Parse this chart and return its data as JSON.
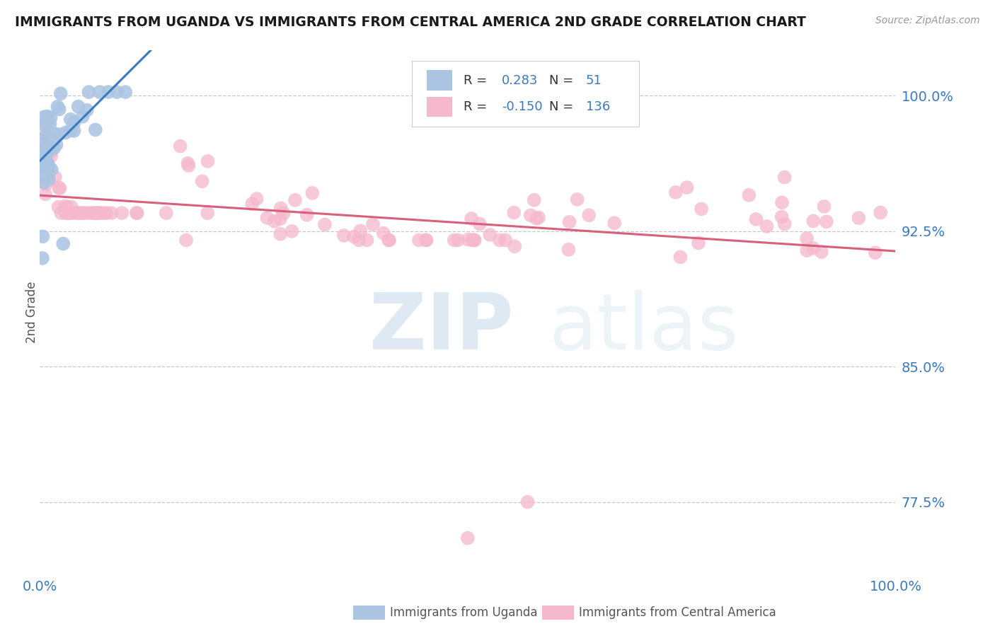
{
  "title": "IMMIGRANTS FROM UGANDA VS IMMIGRANTS FROM CENTRAL AMERICA 2ND GRADE CORRELATION CHART",
  "source": "Source: ZipAtlas.com",
  "ylabel": "2nd Grade",
  "xlim": [
    0.0,
    1.0
  ],
  "ylim": [
    0.735,
    1.025
  ],
  "yticks": [
    0.775,
    0.85,
    0.925,
    1.0
  ],
  "ytick_labels": [
    "77.5%",
    "85.0%",
    "92.5%",
    "100.0%"
  ],
  "xtick_labels": [
    "0.0%",
    "100.0%"
  ],
  "legend_r_blue": "0.283",
  "legend_n_blue": "51",
  "legend_r_pink": "-0.150",
  "legend_n_pink": "136",
  "blue_color": "#aac4e2",
  "pink_color": "#f5b8cc",
  "trend_blue_color": "#3a7abf",
  "trend_pink_color": "#d9607a",
  "watermark_color": "#ccdcec",
  "background_color": "#ffffff",
  "tick_color": "#3a7abf",
  "grid_color": "#bbbbbb"
}
